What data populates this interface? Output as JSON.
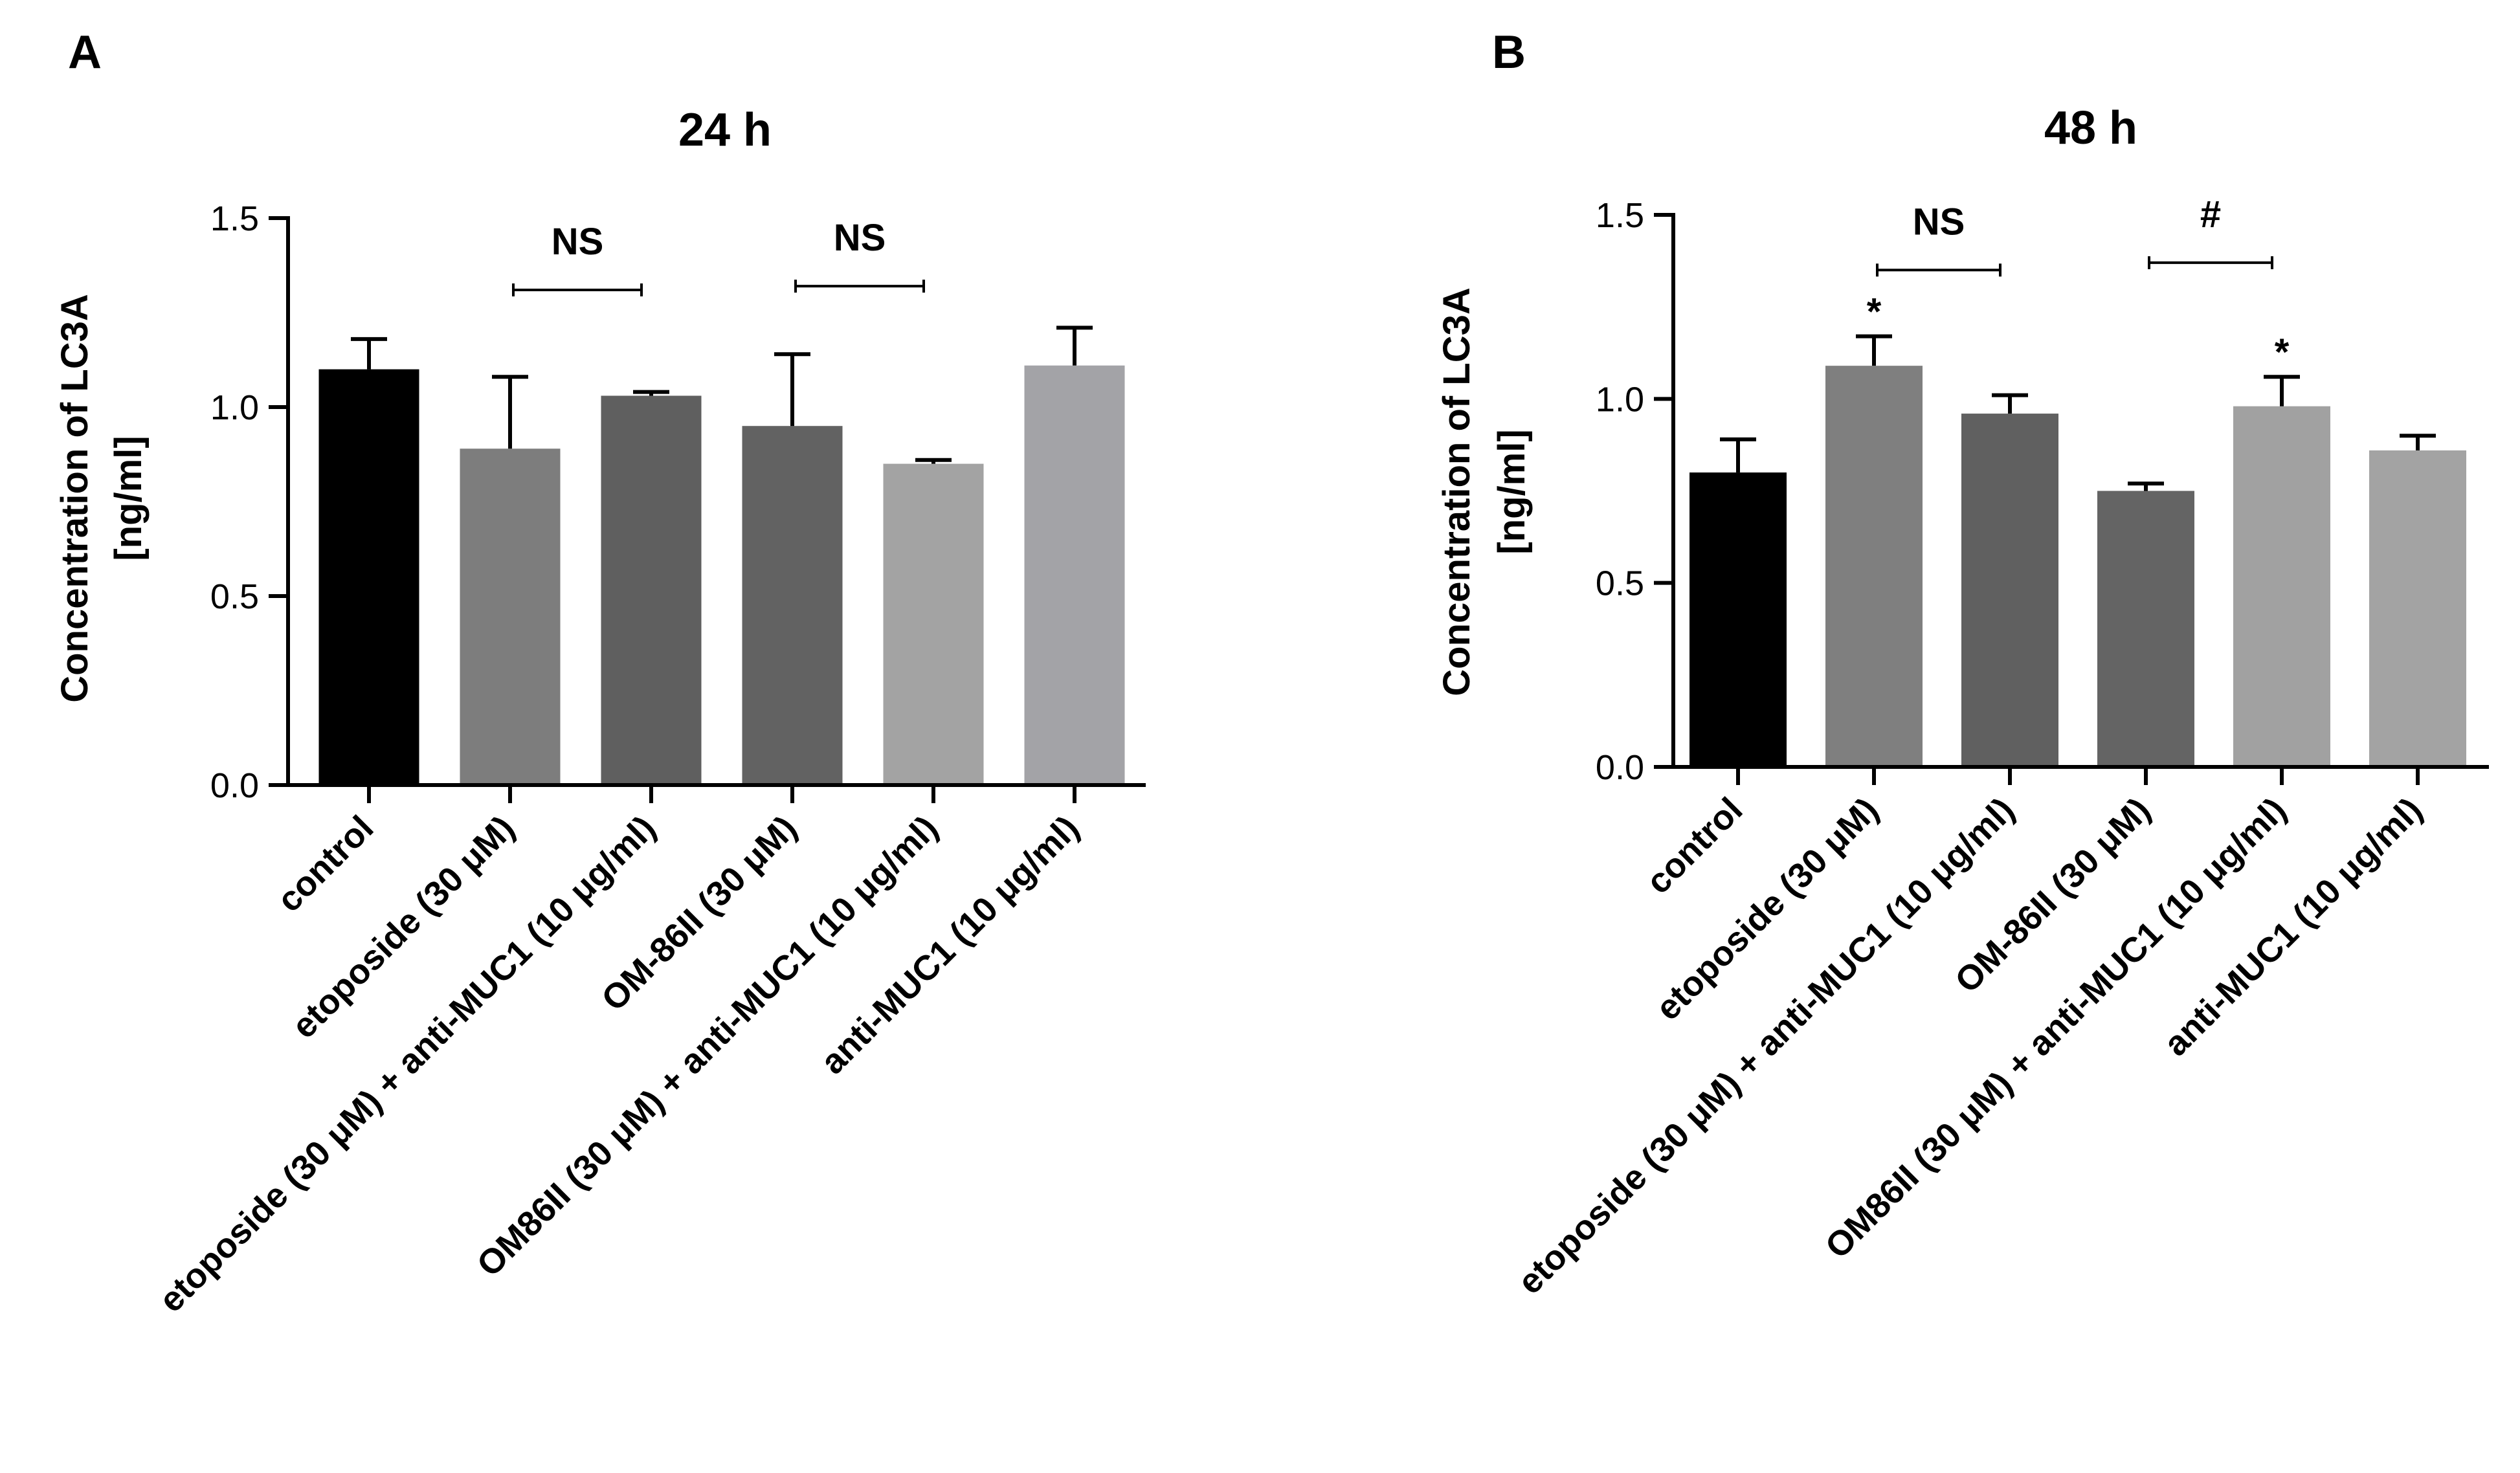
{
  "chart_data": [
    {
      "panel": "A",
      "type": "bar",
      "title": "24 h",
      "ylabel_line1": "Concentration of LC3A",
      "ylabel_line2": "[ng/ml]",
      "ylim": [
        0,
        1.5
      ],
      "yticks": [
        "0.0",
        "0.5",
        "1.0",
        "1.5"
      ],
      "categories": [
        "control",
        "etoposide (30 μM)",
        "etoposide (30 μM) + anti-MUC1 (10 μg/ml)",
        "OM-86II (30 μM)",
        "OM86II (30 μM) + anti-MUC1 (10 μg/ml)",
        "anti-MUC1 (10 μg/ml)"
      ],
      "values": [
        1.1,
        0.89,
        1.03,
        0.95,
        0.85,
        1.11
      ],
      "errors": [
        0.08,
        0.19,
        0.01,
        0.19,
        0.01,
        0.1
      ],
      "colors": [
        "#000000",
        "#7d7d7d",
        "#5f5f5f",
        "#626262",
        "#a3a3a3",
        "#a3a3a7"
      ],
      "brackets": [
        {
          "from": 1,
          "to": 2,
          "label": "NS",
          "level": 1.31
        },
        {
          "from": 3,
          "to": 4,
          "label": "NS",
          "level": 1.32
        }
      ],
      "stars": []
    },
    {
      "panel": "B",
      "type": "bar",
      "title": "48 h",
      "ylabel_line1": "Concentration of LC3A",
      "ylabel_line2": "[ng/ml]",
      "ylim": [
        0,
        1.5
      ],
      "yticks": [
        "0.0",
        "0.5",
        "1.0",
        "1.5"
      ],
      "categories": [
        "control",
        "etoposide (30 μM)",
        "etoposide (30 μM) + anti-MUC1 (10 μg/ml)",
        "OM-86II (30 μM)",
        "OM86II (30 μM) + anti-MUC1 (10 μg/ml)",
        "anti-MUC1 (10 μg/ml)"
      ],
      "values": [
        0.8,
        1.09,
        0.96,
        0.75,
        0.98,
        0.86
      ],
      "errors": [
        0.09,
        0.08,
        0.05,
        0.02,
        0.08,
        0.04
      ],
      "colors": [
        "#000000",
        "#7f7f7f",
        "#606060",
        "#646464",
        "#a1a1a1",
        "#a3a3a3"
      ],
      "brackets": [
        {
          "from": 1,
          "to": 2,
          "label": "NS",
          "level": 1.35
        },
        {
          "from": 3,
          "to": 4,
          "label": "#",
          "level": 1.37
        }
      ],
      "stars": [
        {
          "index": 1,
          "label": "*"
        },
        {
          "index": 4,
          "label": "*"
        }
      ]
    }
  ]
}
